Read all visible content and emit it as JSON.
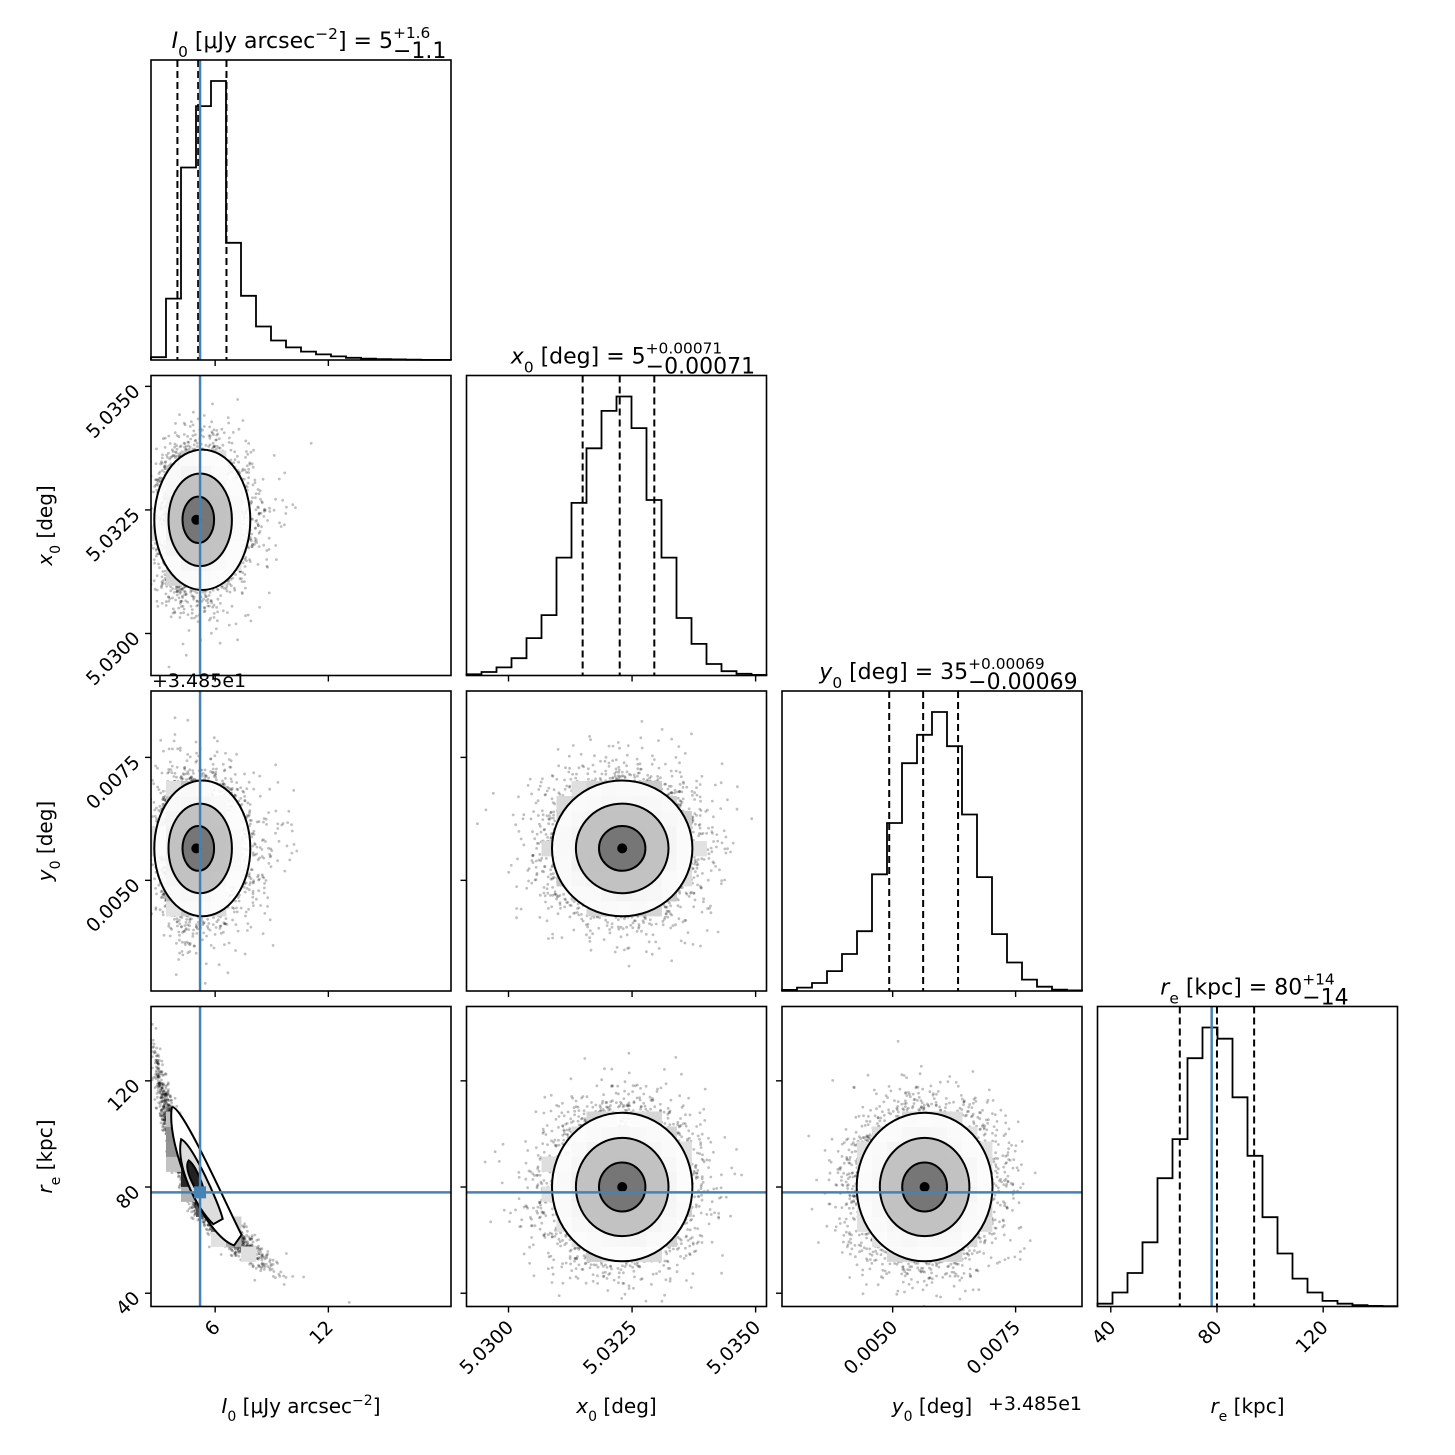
{
  "chart_data": {
    "type": "corner",
    "colors": {
      "truth": "#4682b4",
      "hist": "#000000",
      "points": "#000000"
    },
    "quantile_style": "dashed",
    "params": [
      {
        "key": "I0",
        "sym": "I",
        "sub": "0",
        "unit_pre": " [μJy arcsec",
        "unit_sup": "−2",
        "unit_post": "]",
        "title": {
          "median": "5",
          "plus": "+1.6",
          "minus": "−1.1"
        },
        "range": [
          2.6,
          18.5
        ],
        "ticks": [
          6,
          12
        ],
        "tick_labels": [
          "6",
          "12"
        ],
        "truth": 5.2,
        "quantiles": [
          4.0,
          5.1,
          6.6
        ],
        "hist": [
          0.01,
          0.22,
          0.69,
          0.91,
          1.0,
          0.42,
          0.23,
          0.12,
          0.07,
          0.045,
          0.03,
          0.02,
          0.013,
          0.008,
          0.005,
          0.003,
          0.002,
          0.001,
          0.0005,
          0.0003
        ],
        "offset": ""
      },
      {
        "key": "x0",
        "sym": "x",
        "sub": "0",
        "unit_pre": " [deg]",
        "unit_sup": "",
        "unit_post": "",
        "title": {
          "median": "5",
          "plus": "+0.00071",
          "minus": "−0.00071"
        },
        "range": [
          5.02915,
          5.03522
        ],
        "ticks": [
          5.03,
          5.0325,
          5.035
        ],
        "tick_labels": [
          "5.0300",
          "5.0325",
          "5.0350"
        ],
        "truth": null,
        "quantiles": [
          5.0315,
          5.03225,
          5.03295
        ],
        "hist": [
          0.004,
          0.012,
          0.028,
          0.06,
          0.13,
          0.21,
          0.41,
          0.6,
          0.79,
          0.92,
          0.97,
          0.86,
          0.61,
          0.41,
          0.2,
          0.11,
          0.04,
          0.015,
          0.006,
          0.002
        ],
        "offset": ""
      },
      {
        "key": "y0",
        "sym": "y",
        "sub": "0",
        "unit_pre": " [deg]",
        "unit_sup": "",
        "unit_post": "",
        "title": {
          "median": "35",
          "plus": "+0.00069",
          "minus": "−0.00069"
        },
        "range": [
          0.00275,
          0.00885
        ],
        "ticks": [
          0.005,
          0.0075
        ],
        "tick_labels": [
          "0.0050",
          "0.0075"
        ],
        "truth": null,
        "quantiles": [
          0.00493,
          0.00562,
          0.00633
        ],
        "hist": [
          0.004,
          0.012,
          0.028,
          0.07,
          0.13,
          0.21,
          0.41,
          0.59,
          0.8,
          0.9,
          0.98,
          0.86,
          0.62,
          0.4,
          0.2,
          0.1,
          0.04,
          0.015,
          0.005,
          0.002
        ],
        "offset": "+3.485e1"
      },
      {
        "key": "re",
        "sym": "r",
        "sub": "e",
        "unit_pre": " [kpc]",
        "unit_sup": "",
        "unit_post": "",
        "title": {
          "median": "80",
          "plus": "+14",
          "minus": "−14"
        },
        "range": [
          35,
          148
        ],
        "ticks": [
          40,
          80,
          120
        ],
        "tick_labels": [
          "40",
          "80",
          "120"
        ],
        "truth": 78,
        "quantiles": [
          66,
          80,
          94
        ],
        "hist": [
          0.01,
          0.05,
          0.12,
          0.23,
          0.46,
          0.6,
          0.89,
          1.0,
          0.96,
          0.75,
          0.54,
          0.32,
          0.19,
          0.1,
          0.05,
          0.02,
          0.01,
          0.005,
          0.002,
          0.001
        ],
        "offset": ""
      }
    ],
    "pairs": [
      {
        "x": "I0",
        "y": "x0",
        "center": [
          5.0,
          5.0323
        ],
        "sigma": [
          1.1,
          0.00071
        ],
        "skew_x": 3.0,
        "corr": 0.0,
        "truth": [
          5.2,
          null
        ]
      },
      {
        "x": "I0",
        "y": "y0",
        "center": [
          5.0,
          0.00565
        ],
        "sigma": [
          1.1,
          0.00069
        ],
        "skew_x": 3.0,
        "corr": 0.0,
        "truth": [
          5.2,
          null
        ]
      },
      {
        "x": "I0",
        "y": "re",
        "center": [
          5.0,
          80
        ],
        "sigma": [
          1.1,
          14
        ],
        "skew_x": 3.0,
        "corr": -0.92,
        "curve": true,
        "truth": [
          5.2,
          78
        ]
      },
      {
        "x": "x0",
        "y": "y0",
        "center": [
          5.0323,
          0.00565
        ],
        "sigma": [
          0.00071,
          0.00069
        ],
        "skew_x": 0,
        "corr": 0.0,
        "truth": [
          null,
          null
        ]
      },
      {
        "x": "x0",
        "y": "re",
        "center": [
          5.0323,
          80
        ],
        "sigma": [
          0.00071,
          14
        ],
        "skew_x": 0,
        "corr": 0.0,
        "truth": [
          null,
          78
        ]
      },
      {
        "x": "y0",
        "y": "re",
        "center": [
          0.00565,
          80
        ],
        "sigma": [
          0.00069,
          14
        ],
        "skew_x": 0,
        "corr": 0.0,
        "truth": [
          null,
          78
        ]
      }
    ]
  }
}
